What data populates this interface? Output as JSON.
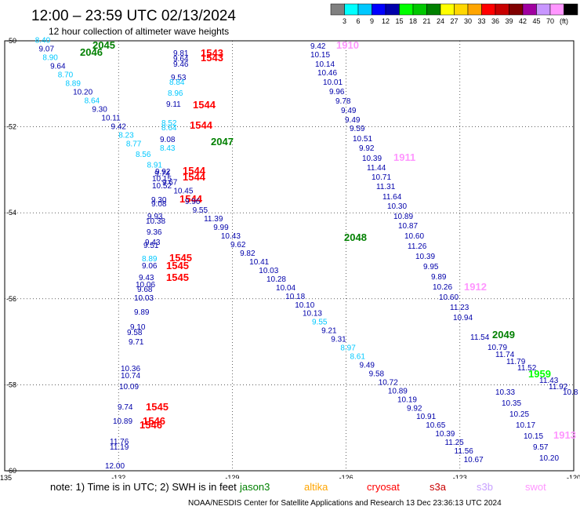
{
  "header": {
    "title": "12:00 – 23:59 UTC 02/13/2024",
    "subtitle": "12 hour collection of altimeter wave heights"
  },
  "colorbar": {
    "labels": [
      "3",
      "6",
      "9",
      "12",
      "15",
      "18",
      "21",
      "24",
      "27",
      "30",
      "33",
      "36",
      "39",
      "42",
      "45",
      "70",
      "(ft)"
    ],
    "colors": [
      "#808080",
      "#00ffff",
      "#00c8ff",
      "#0000ff",
      "#0000aa",
      "#00ff00",
      "#00c800",
      "#008000",
      "#ffff00",
      "#ffd700",
      "#ffa500",
      "#ff0000",
      "#c80000",
      "#800000",
      "#a000a0",
      "#c896ff",
      "#ff96ff",
      "#000000"
    ]
  },
  "footer": {
    "note": "note:  1) Time is in UTC; 2) SWH is in feet",
    "credit": "NOAA/NESDIS Center for Satellite Applications and Research    13 Dec 23:36:13 UTC 2024",
    "satellites": [
      {
        "name": "jason3",
        "color": "#008000"
      },
      {
        "name": "altika",
        "color": "#ffa500"
      },
      {
        "name": "cryosat",
        "color": "#ff0000"
      },
      {
        "name": "s3a",
        "color": "#c80000"
      },
      {
        "name": "s3b",
        "color": "#c8a0ff"
      },
      {
        "name": "swot",
        "color": "#ff96ff"
      }
    ]
  },
  "chart_data": {
    "type": "scatter",
    "title": "12:00 – 23:59 UTC 02/13/2024",
    "subtitle": "12 hour collection of altimeter wave heights",
    "xlabel": "",
    "ylabel": "",
    "xlim": [
      -135,
      -120
    ],
    "ylim": [
      -60,
      -50
    ],
    "x_ticks": [
      {
        "value": -135,
        "label": "-135"
      },
      {
        "value": -132,
        "label": "-132"
      },
      {
        "value": -129,
        "label": "-129"
      },
      {
        "value": -126,
        "label": "-126"
      },
      {
        "value": -123,
        "label": "-123"
      },
      {
        "value": -120,
        "label": "-120"
      }
    ],
    "y_ticks": [
      {
        "value": -50,
        "label": "-50"
      },
      {
        "value": -52,
        "label": "-52"
      },
      {
        "value": -54,
        "label": "-54"
      },
      {
        "value": -56,
        "label": "-56"
      },
      {
        "value": -58,
        "label": "-58"
      },
      {
        "value": -60,
        "label": "-60"
      }
    ],
    "grid": true,
    "points": [
      {
        "lon": -134.2,
        "lat": -50.05,
        "swh": "8.40",
        "color": "#00c8ff"
      },
      {
        "lon": -134.1,
        "lat": -50.25,
        "swh": "9.07",
        "color": "#0000aa"
      },
      {
        "lon": -134.0,
        "lat": -50.45,
        "swh": "8.90",
        "color": "#00c8ff"
      },
      {
        "lon": -133.8,
        "lat": -50.65,
        "swh": "9.64",
        "color": "#0000aa"
      },
      {
        "lon": -133.6,
        "lat": -50.85,
        "swh": "8.70",
        "color": "#00c8ff"
      },
      {
        "lon": -133.4,
        "lat": -51.05,
        "swh": "8.89",
        "color": "#00c8ff"
      },
      {
        "lon": -133.2,
        "lat": -51.25,
        "swh": "10.20",
        "color": "#0000aa"
      },
      {
        "lon": -132.9,
        "lat": -51.45,
        "swh": "8.64",
        "color": "#00c8ff"
      },
      {
        "lon": -132.7,
        "lat": -51.65,
        "swh": "9.30",
        "color": "#0000aa"
      },
      {
        "lon": -132.45,
        "lat": -51.85,
        "swh": "10.11",
        "color": "#0000aa"
      },
      {
        "lon": -132.2,
        "lat": -52.05,
        "swh": "9.42",
        "color": "#0000aa"
      },
      {
        "lon": -132.0,
        "lat": -52.25,
        "swh": "8.23",
        "color": "#00c8ff"
      },
      {
        "lon": -131.8,
        "lat": -52.45,
        "swh": "8.77",
        "color": "#00c8ff"
      },
      {
        "lon": -131.55,
        "lat": -52.7,
        "swh": "8.56",
        "color": "#00c8ff"
      },
      {
        "lon": -131.25,
        "lat": -52.95,
        "swh": "8.91",
        "color": "#00c8ff"
      },
      {
        "lon": -131.05,
        "lat": -53.15,
        "swh": "9.74",
        "color": "#0000aa"
      },
      {
        "lon": -130.85,
        "lat": -53.35,
        "swh": "9.67",
        "color": "#0000aa"
      },
      {
        "lon": -130.55,
        "lat": -53.55,
        "swh": "10.45",
        "color": "#0000aa"
      },
      {
        "lon": -130.25,
        "lat": -53.8,
        "swh": "9.96",
        "color": "#0000aa"
      },
      {
        "lon": -130.05,
        "lat": -54.0,
        "swh": "9.55",
        "color": "#0000aa"
      },
      {
        "lon": -129.75,
        "lat": -54.2,
        "swh": "11.39",
        "color": "#0000aa"
      },
      {
        "lon": -129.5,
        "lat": -54.4,
        "swh": "9.99",
        "color": "#0000aa"
      },
      {
        "lon": -129.3,
        "lat": -54.6,
        "swh": "10.43",
        "color": "#0000aa"
      },
      {
        "lon": -129.05,
        "lat": -54.8,
        "swh": "9.62",
        "color": "#0000aa"
      },
      {
        "lon": -128.8,
        "lat": -55.0,
        "swh": "9.82",
        "color": "#0000aa"
      },
      {
        "lon": -128.55,
        "lat": -55.2,
        "swh": "10.41",
        "color": "#0000aa"
      },
      {
        "lon": -128.3,
        "lat": -55.4,
        "swh": "10.03",
        "color": "#0000aa"
      },
      {
        "lon": -128.1,
        "lat": -55.6,
        "swh": "10.28",
        "color": "#0000aa"
      },
      {
        "lon": -127.85,
        "lat": -55.8,
        "swh": "10.04",
        "color": "#0000aa"
      },
      {
        "lon": -127.6,
        "lat": -56.0,
        "swh": "10.18",
        "color": "#0000aa"
      },
      {
        "lon": -127.35,
        "lat": -56.2,
        "swh": "10.10",
        "color": "#0000aa"
      },
      {
        "lon": -127.15,
        "lat": -56.4,
        "swh": "10.13",
        "color": "#0000aa"
      },
      {
        "lon": -126.9,
        "lat": -56.6,
        "swh": "9.55",
        "color": "#00c8ff"
      },
      {
        "lon": -126.65,
        "lat": -56.8,
        "swh": "9.21",
        "color": "#0000aa"
      },
      {
        "lon": -126.4,
        "lat": -57.0,
        "swh": "9.31",
        "color": "#0000aa"
      },
      {
        "lon": -126.15,
        "lat": -57.2,
        "swh": "8.97",
        "color": "#00c8ff"
      },
      {
        "lon": -125.9,
        "lat": -57.4,
        "swh": "8.61",
        "color": "#00c8ff"
      },
      {
        "lon": -125.65,
        "lat": -57.6,
        "swh": "9.49",
        "color": "#0000aa"
      },
      {
        "lon": -125.4,
        "lat": -57.8,
        "swh": "9.58",
        "color": "#0000aa"
      },
      {
        "lon": -125.15,
        "lat": -58.0,
        "swh": "10.72",
        "color": "#0000aa"
      },
      {
        "lon": -124.9,
        "lat": -58.2,
        "swh": "10.89",
        "color": "#0000aa"
      },
      {
        "lon": -124.65,
        "lat": -58.4,
        "swh": "10.19",
        "color": "#0000aa"
      },
      {
        "lon": -124.4,
        "lat": -58.6,
        "swh": "9.92",
        "color": "#0000aa"
      },
      {
        "lon": -124.15,
        "lat": -58.8,
        "swh": "10.91",
        "color": "#0000aa"
      },
      {
        "lon": -123.9,
        "lat": -59.0,
        "swh": "10.65",
        "color": "#0000aa"
      },
      {
        "lon": -123.65,
        "lat": -59.2,
        "swh": "10.39",
        "color": "#0000aa"
      },
      {
        "lon": -123.4,
        "lat": -59.4,
        "swh": "11.25",
        "color": "#0000aa"
      },
      {
        "lon": -123.15,
        "lat": -59.6,
        "swh": "11.56",
        "color": "#0000aa"
      },
      {
        "lon": -122.9,
        "lat": -59.8,
        "swh": "10.67",
        "color": "#0000aa"
      }
    ]
  }
}
